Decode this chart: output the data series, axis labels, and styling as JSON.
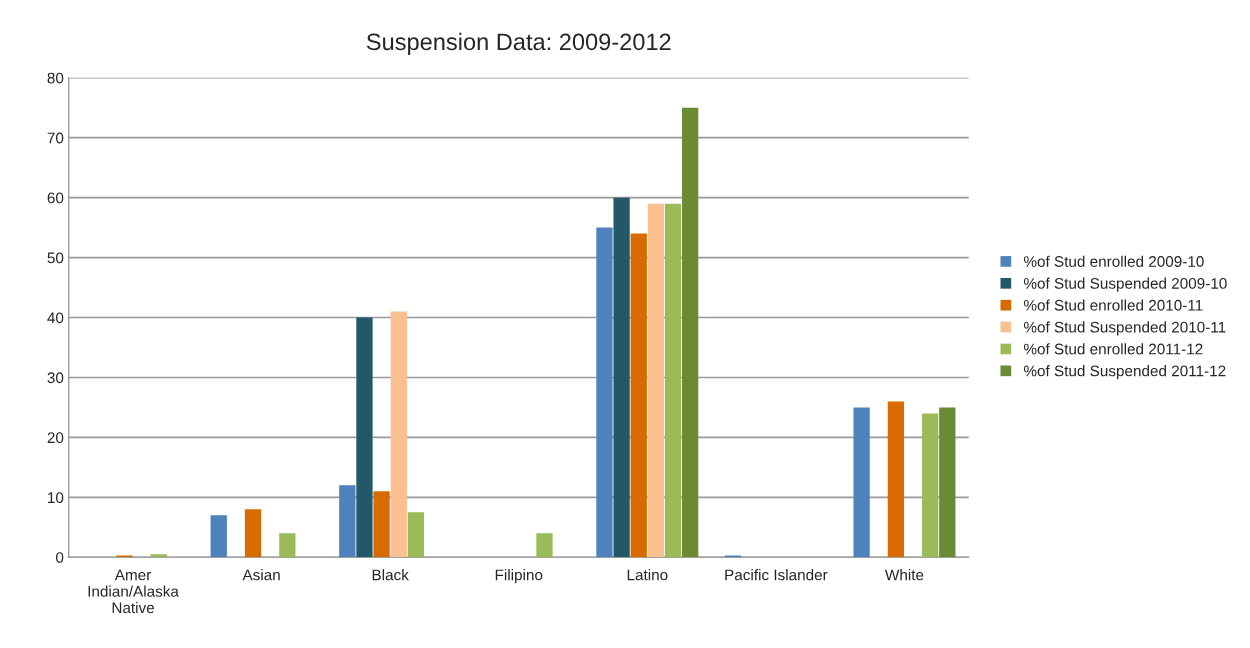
{
  "chart_data": {
    "type": "bar",
    "title": "Suspension Data: 2009-2012",
    "categories": [
      "Amer Indian/Alaska Native",
      "Asian",
      "Black",
      "Filipino",
      "Latino",
      "Pacific Islander",
      "White"
    ],
    "series": [
      {
        "name": "%of Stud enrolled 2009-10",
        "color": "#4f81bd",
        "values": [
          null,
          7,
          12,
          null,
          55,
          0.3,
          25
        ]
      },
      {
        "name": "%of Stud Suspended 2009-10",
        "color": "#215968",
        "values": [
          null,
          null,
          40,
          null,
          60,
          null,
          null
        ]
      },
      {
        "name": "%of Stud enrolled 2010-11",
        "color": "#d86b00",
        "values": [
          0.3,
          8,
          11,
          null,
          54,
          null,
          26
        ]
      },
      {
        "name": "%of Stud Suspended 2010-11",
        "color": "#fac090",
        "values": [
          null,
          null,
          41,
          null,
          59,
          null,
          null
        ]
      },
      {
        "name": "%of Stud enrolled 2011-12",
        "color": "#9bbb59",
        "values": [
          0.5,
          4,
          7.5,
          4,
          59,
          null,
          24
        ]
      },
      {
        "name": "%of Stud Suspended 2011-12",
        "color": "#6a8a33",
        "values": [
          null,
          null,
          null,
          null,
          75,
          null,
          25
        ]
      }
    ],
    "ylim": [
      0,
      80
    ],
    "yticks": [
      0,
      10,
      20,
      30,
      40,
      50,
      60,
      70,
      80
    ],
    "grid": "y",
    "legend": "right"
  }
}
